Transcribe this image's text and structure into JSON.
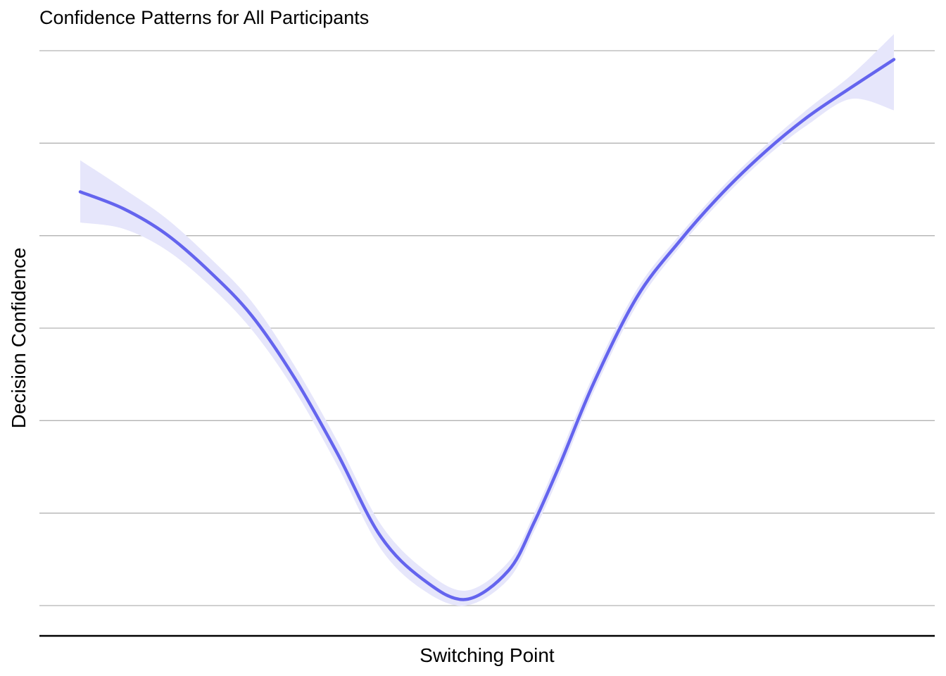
{
  "chart_data": {
    "type": "line",
    "title": "Confidence Patterns for All Participants",
    "xlabel": "Switching Point",
    "ylabel": "Decision Confidence",
    "x_ticks_shown": false,
    "y_ticks_shown": false,
    "grid": "horizontal",
    "xlim": [
      0,
      1
    ],
    "ylim": [
      0,
      6.33
    ],
    "series": [
      {
        "color": "#6464ee",
        "band_color": "#e6e6fb",
        "x": [
          0.05,
          0.1,
          0.15,
          0.2,
          0.25,
          0.3,
          0.35,
          0.4,
          0.45,
          0.5,
          0.55,
          0.58,
          0.61,
          0.65,
          0.7,
          0.75,
          0.8,
          0.85,
          0.9,
          0.95,
          1.0
        ],
        "y": [
          4.72,
          4.53,
          4.24,
          3.82,
          3.31,
          2.6,
          1.74,
          0.8,
          0.3,
          0.07,
          0.4,
          0.95,
          1.61,
          2.55,
          3.52,
          4.16,
          4.71,
          5.18,
          5.58,
          5.91,
          6.23
        ],
        "lower": [
          4.37,
          4.3,
          4.06,
          3.66,
          3.15,
          2.46,
          1.6,
          0.66,
          0.18,
          0.0,
          0.3,
          0.85,
          1.5,
          2.45,
          3.43,
          4.09,
          4.64,
          5.11,
          5.49,
          5.78,
          5.65
        ],
        "upper": [
          5.08,
          4.76,
          4.42,
          3.98,
          3.47,
          2.74,
          1.88,
          0.94,
          0.42,
          0.17,
          0.5,
          1.05,
          1.72,
          2.65,
          3.61,
          4.23,
          4.78,
          5.25,
          5.67,
          6.05,
          6.52
        ]
      }
    ]
  }
}
